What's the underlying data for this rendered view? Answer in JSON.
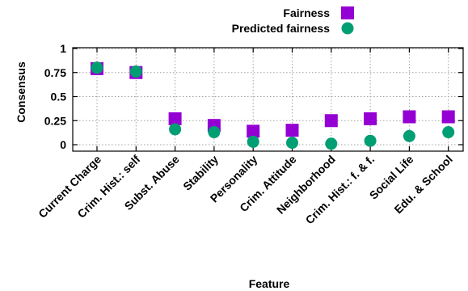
{
  "chart_data": {
    "type": "scatter",
    "xlabel": "Feature",
    "ylabel": "Consensus",
    "ylim": [
      0,
      1
    ],
    "yticks": [
      "0",
      "0.25",
      "0.5",
      "0.75",
      "1"
    ],
    "grid": true,
    "legend_position": "top-right",
    "categories": [
      "Current Charge",
      "Crim. Hist.: self",
      "Subst. Abuse",
      "Stability",
      "Personality",
      "Crim. Attitude",
      "Neighborhood",
      "Crim. Hist.: f. & f.",
      "Social Life",
      "Edu. & School"
    ],
    "series": [
      {
        "name": "Fairness",
        "marker": "square",
        "color": "#9400d3",
        "values": [
          0.79,
          0.75,
          0.27,
          0.2,
          0.14,
          0.15,
          0.25,
          0.27,
          0.29,
          0.29
        ]
      },
      {
        "name": "Predicted fairness",
        "marker": "circle",
        "color": "#009e73",
        "values": [
          0.8,
          0.76,
          0.16,
          0.13,
          0.03,
          0.02,
          0.01,
          0.04,
          0.09,
          0.13
        ]
      }
    ]
  }
}
